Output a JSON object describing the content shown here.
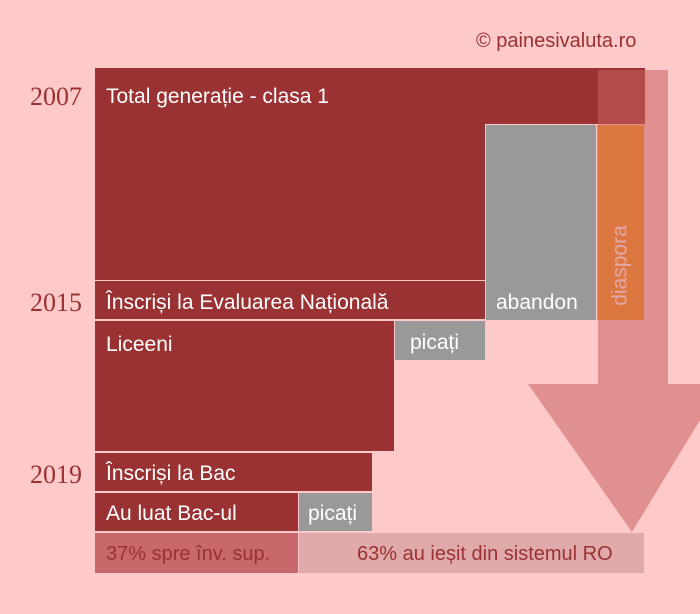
{
  "credit": "© painesivaluta.ro",
  "years": {
    "y2007": "2007",
    "y2015": "2015",
    "y2019": "2019"
  },
  "blocks": {
    "total": "Total generație - clasa 1",
    "evaluare": "Înscriși la Evaluarea Națională",
    "abandon": "abandon",
    "diaspora": "diaspora",
    "liceeni": "Liceeni",
    "picati_lic": "picați",
    "inscrisi_bac": "Înscriși la Bac",
    "luat_bac": "Au luat Bac-ul",
    "picati_bac": "picați"
  },
  "bottom": {
    "left": "37% spre înv. sup.",
    "right": "63% au ieșit din sistemul RO"
  },
  "colors": {
    "background": "#fec9c9",
    "red": "#9a3132",
    "gray": "#999999",
    "orange": "#f7921e"
  }
}
